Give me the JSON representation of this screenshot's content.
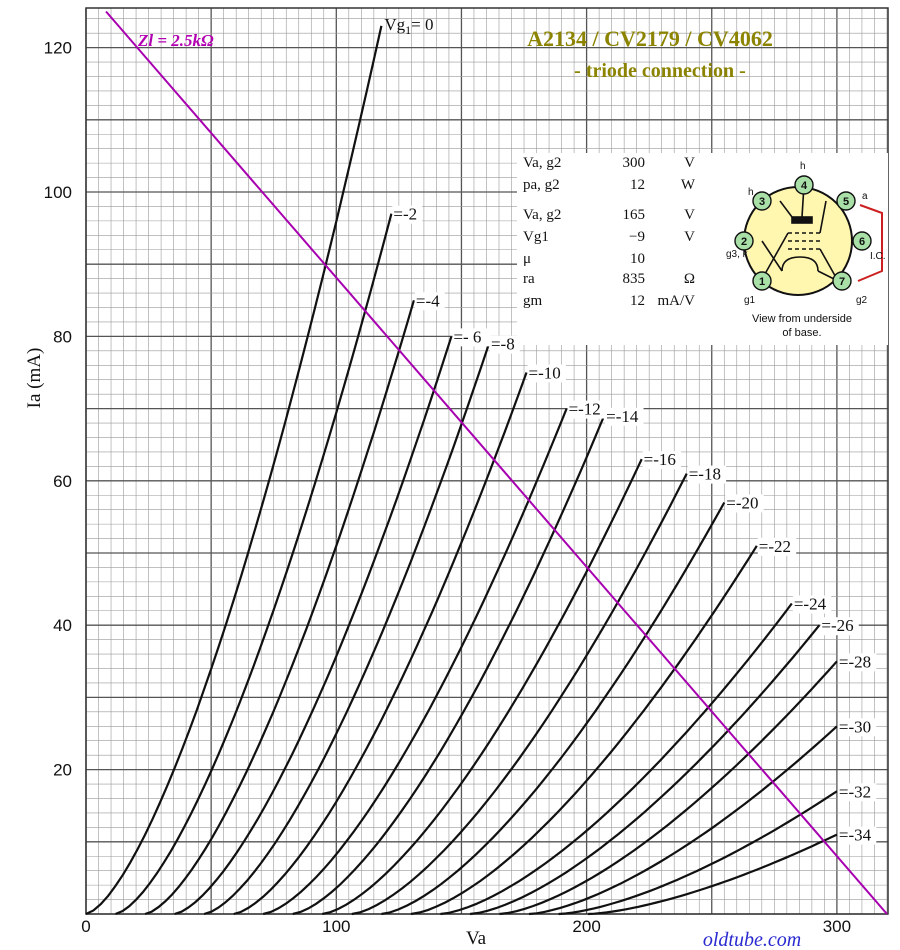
{
  "chart_data": {
    "type": "line",
    "title": "A2134 / CV2179 / CV4062",
    "subtitle": "- triode connection -",
    "xlabel": "Va",
    "ylabel": "Ia (mA)",
    "xlim": [
      0,
      320
    ],
    "ylim": [
      0,
      125
    ],
    "x_ticks": [
      "0",
      "100",
      "200",
      "300"
    ],
    "y_ticks": [
      "20",
      "40",
      "60",
      "80",
      "100",
      "120"
    ],
    "grid": true,
    "series": [
      {
        "name": "Vg1 = 0",
        "label": "0",
        "vg": 0,
        "x_end": 118,
        "y_end": 123
      },
      {
        "name": "Vg1 = -2",
        "label": "=-2",
        "vg": -2,
        "x_end": 122,
        "y_end": 97
      },
      {
        "name": "Vg1 = -4",
        "label": "=-4",
        "vg": -4,
        "x_end": 131,
        "y_end": 85
      },
      {
        "name": "Vg1 = -6",
        "label": "=- 6",
        "vg": -6,
        "x_end": 146,
        "y_end": 80
      },
      {
        "name": "Vg1 = -8",
        "label": "=-8",
        "vg": -8,
        "x_end": 161,
        "y_end": 79
      },
      {
        "name": "Vg1 = -10",
        "label": "=-10",
        "vg": -10,
        "x_end": 176,
        "y_end": 75
      },
      {
        "name": "Vg1 = -12",
        "label": "=-12",
        "vg": -12,
        "x_end": 192,
        "y_end": 70
      },
      {
        "name": "Vg1 = -14",
        "label": "=-14",
        "vg": -14,
        "x_end": 207,
        "y_end": 69
      },
      {
        "name": "Vg1 = -16",
        "label": "=-16",
        "vg": -16,
        "x_end": 222,
        "y_end": 63
      },
      {
        "name": "Vg1 = -18",
        "label": "=-18",
        "vg": -18,
        "x_end": 240,
        "y_end": 61
      },
      {
        "name": "Vg1 = -20",
        "label": "=-20",
        "vg": -20,
        "x_end": 255,
        "y_end": 57
      },
      {
        "name": "Vg1 = -22",
        "label": "=-22",
        "vg": -22,
        "x_end": 268,
        "y_end": 51
      },
      {
        "name": "Vg1 = -24",
        "label": "=-24",
        "vg": -24,
        "x_end": 282,
        "y_end": 43
      },
      {
        "name": "Vg1 = -26",
        "label": "=-26",
        "vg": -26,
        "x_end": 293,
        "y_end": 40
      },
      {
        "name": "Vg1 = -28",
        "label": "=-28",
        "vg": -28,
        "x_end": 300,
        "y_end": 35
      },
      {
        "name": "Vg1 = -30",
        "label": "=-30",
        "vg": -30,
        "x_end": 300,
        "y_end": 26
      },
      {
        "name": "Vg1 = -32",
        "label": "=-32",
        "vg": -32,
        "x_end": 300,
        "y_end": 17
      },
      {
        "name": "Vg1 = -34",
        "label": "=-34",
        "vg": -34,
        "x_end": 300,
        "y_end": 11
      }
    ],
    "vg0_prefix": "Vg",
    "vg0_sub": "1",
    "vg0_suffix": "= 0",
    "load_line": {
      "label": "Zl = 2.5kΩ",
      "x": [
        8,
        320
      ],
      "y": [
        125,
        0
      ],
      "color": "#a800b0"
    }
  },
  "specs": [
    {
      "name": "Va, g2",
      "value": "300",
      "unit": "V"
    },
    {
      "name": "pa, g2",
      "value": "12",
      "unit": "W"
    },
    {
      "name": "Va, g2",
      "value": "165",
      "unit": "V"
    },
    {
      "name": "Vg1",
      "value": "−9",
      "unit": "V"
    },
    {
      "name": "μ",
      "value": "10",
      "unit": ""
    },
    {
      "name": "ra",
      "value": "835",
      "unit": "Ω"
    },
    {
      "name": "gm",
      "value": "12",
      "unit": "mA/V"
    }
  ],
  "base_diagram": {
    "caption_line1": "View from underside",
    "caption_line2": "of base.",
    "pins": [
      {
        "num": "1",
        "label": "g1"
      },
      {
        "num": "2",
        "label": "g3, k"
      },
      {
        "num": "3",
        "label": "h"
      },
      {
        "num": "4",
        "label": "h"
      },
      {
        "num": "5",
        "label": "a"
      },
      {
        "num": "6",
        "label": "I.C."
      },
      {
        "num": "7",
        "label": "g2"
      }
    ],
    "pin_color": "#a8e0a8",
    "strap_color": "#cc2020"
  },
  "footer": {
    "site": "oldtube.com"
  }
}
